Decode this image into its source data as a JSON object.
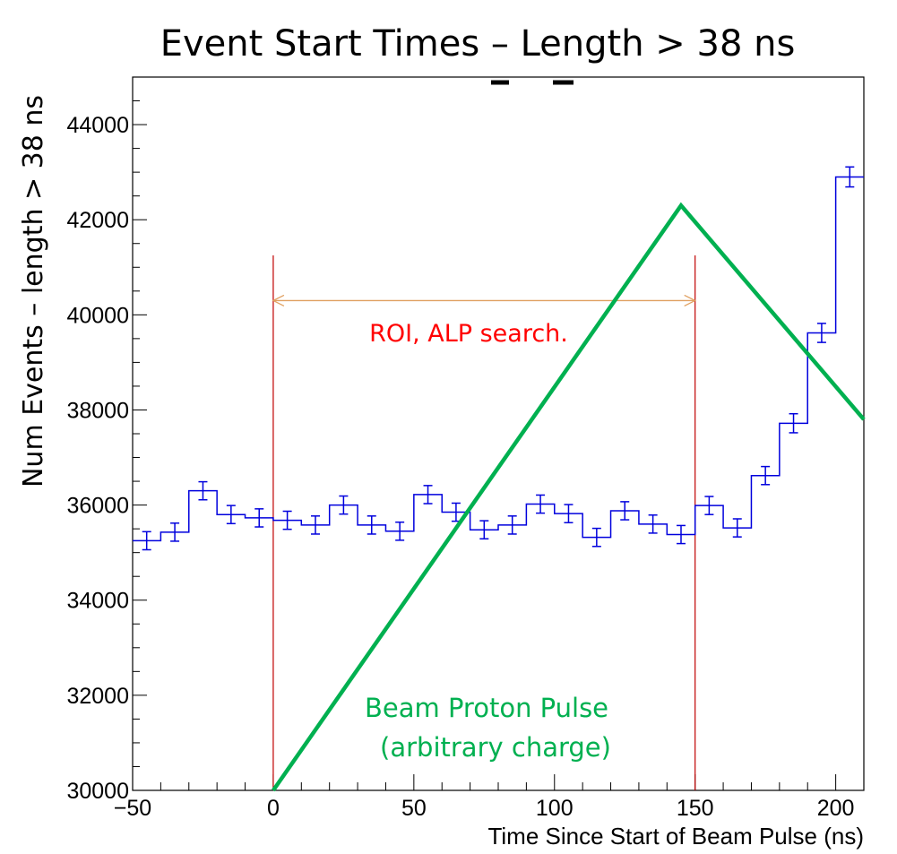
{
  "chart_data": {
    "type": "line",
    "title": "Event Start Times – Length > 38 ns",
    "xlabel": "Time Since Start of Beam Pulse (ns)",
    "ylabel": "Num Events – length > 38 ns",
    "xlim": [
      -50,
      210
    ],
    "ylim": [
      30000,
      45000
    ],
    "x_ticks": [
      -50,
      0,
      50,
      100,
      150,
      200
    ],
    "x_tick_labels": [
      "−50",
      "0",
      "50",
      "100",
      "150",
      "200"
    ],
    "y_ticks": [
      30000,
      32000,
      34000,
      36000,
      38000,
      40000,
      42000,
      44000
    ],
    "grid": false,
    "colors": {
      "histogram": "#0000dd",
      "beam": "#00b050",
      "roi_lines": "#c00000",
      "roi_arrow": "#e0a060",
      "roi_text": "#ff0000"
    },
    "histogram": {
      "bin_width": 10,
      "bin_low_edges": [
        -50,
        -40,
        -30,
        -20,
        -10,
        0,
        10,
        20,
        30,
        40,
        50,
        60,
        70,
        80,
        90,
        100,
        110,
        120,
        130,
        140,
        150,
        160,
        170,
        180,
        190,
        200
      ],
      "values": [
        35250,
        35430,
        36300,
        35800,
        35730,
        35680,
        35580,
        36000,
        35580,
        35450,
        36220,
        35850,
        35480,
        35580,
        36020,
        35820,
        35320,
        35880,
        35600,
        35380,
        35990,
        35520,
        36620,
        37720,
        39620,
        42900
      ],
      "errors": [
        190,
        190,
        190,
        190,
        190,
        190,
        190,
        190,
        190,
        190,
        190,
        190,
        190,
        190,
        190,
        190,
        190,
        190,
        190,
        190,
        190,
        190,
        190,
        200,
        200,
        210
      ]
    },
    "beam_pulse": {
      "x": [
        0,
        145,
        210
      ],
      "y": [
        30000,
        42300,
        37800
      ]
    },
    "roi": {
      "x_start": 0,
      "x_end": 150,
      "label": "ROI, ALP search."
    },
    "beam_label_line1": "Beam Proton Pulse",
    "beam_label_line2": "(arbitrary charge)"
  }
}
